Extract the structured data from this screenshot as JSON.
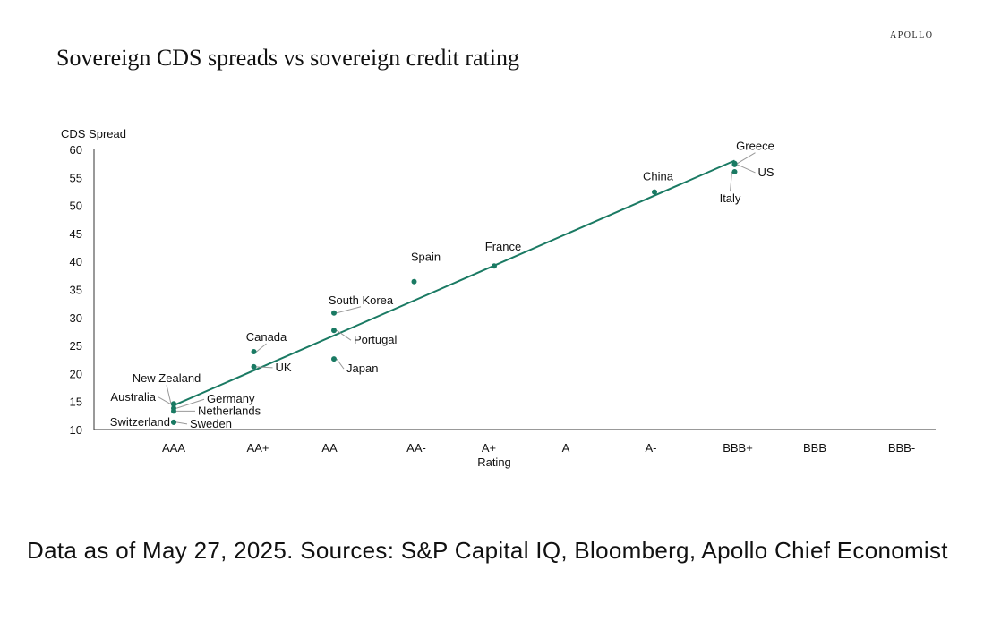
{
  "brand": "APOLLO",
  "chart_data": {
    "type": "scatter",
    "title": "Sovereign CDS spreads vs sovereign credit rating",
    "xlabel": "Rating",
    "ylabel": "CDS Spread",
    "categories": [
      "AAA",
      "AA+",
      "AA",
      "AA-",
      "A+",
      "A",
      "A-",
      "BBB+",
      "BBB",
      "BBB-"
    ],
    "ylim": [
      10,
      60
    ],
    "yticks": [
      10,
      15,
      20,
      25,
      30,
      35,
      40,
      45,
      50,
      55,
      60
    ],
    "points": [
      {
        "name": "Switzerland",
        "rating": "AAA",
        "value": 11.3
      },
      {
        "name": "Sweden",
        "rating": "AAA",
        "value": 11.3
      },
      {
        "name": "Netherlands",
        "rating": "AAA",
        "value": 13.3
      },
      {
        "name": "Germany",
        "rating": "AAA",
        "value": 13.8
      },
      {
        "name": "Australia",
        "rating": "AAA",
        "value": 14.5
      },
      {
        "name": "New Zealand",
        "rating": "AAA",
        "value": 14.6
      },
      {
        "name": "Canada",
        "rating": "AA+",
        "value": 23.9
      },
      {
        "name": "UK",
        "rating": "AA+",
        "value": 21.2
      },
      {
        "name": "South Korea",
        "rating": "AA",
        "value": 30.8
      },
      {
        "name": "Portugal",
        "rating": "AA",
        "value": 27.7
      },
      {
        "name": "Japan",
        "rating": "AA",
        "value": 22.6
      },
      {
        "name": "Spain",
        "rating": "AA-",
        "value": 36.4
      },
      {
        "name": "France",
        "rating": "A+",
        "value": 39.2
      },
      {
        "name": "China",
        "rating": "A-",
        "value": 52.4
      },
      {
        "name": "Greece",
        "rating": "BBB+",
        "value": 57.5
      },
      {
        "name": "US",
        "rating": "BBB+",
        "value": 57.3
      },
      {
        "name": "Italy",
        "rating": "BBB+",
        "value": 56.0
      }
    ],
    "trendline": {
      "from": {
        "rating": "AAA",
        "value": 14.3
      },
      "to": {
        "rating": "BBB+",
        "value": 58.0
      }
    },
    "colors": {
      "point": "#1a7a63",
      "line": "#1a7a63",
      "leader": "#999999"
    }
  },
  "footnote": "Data as of May 27, 2025. Sources: S&P Capital IQ, Bloomberg, Apollo Chief Economist"
}
